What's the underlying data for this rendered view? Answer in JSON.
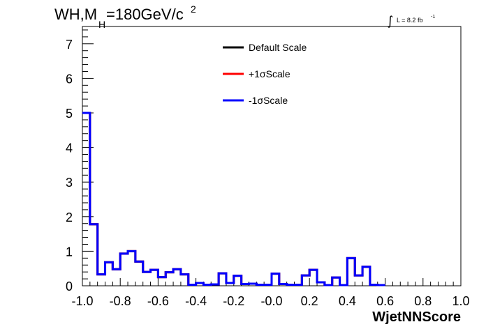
{
  "header": {
    "title_main": "WH,M",
    "title_sub": "H",
    "title_rest": "=180GeV/c",
    "title_sup": "2",
    "lumi_int": "∫",
    "lumi_label": "L = 8.2 fb",
    "lumi_sup": "-1"
  },
  "chart_data": {
    "type": "line",
    "xlabel": "WjetNNScore",
    "ylabel": "",
    "xlim": [
      -1.0,
      1.0
    ],
    "ylim": [
      0,
      7.5
    ],
    "x_ticks": [
      "-1.0",
      "-0.8",
      "-0.6",
      "-0.4",
      "-0.2",
      "-0.0",
      "0.2",
      "0.4",
      "0.6",
      "0.8",
      "1.0"
    ],
    "y_ticks": [
      "0",
      "1",
      "2",
      "3",
      "4",
      "5",
      "6",
      "7"
    ],
    "bin_edges_start": -1.0,
    "bin_width": 0.04,
    "series": [
      {
        "name": "Default Scale",
        "color": "#000000",
        "values": [
          5.0,
          1.78,
          0.33,
          0.68,
          0.48,
          0.93,
          1.0,
          0.7,
          0.4,
          0.46,
          0.25,
          0.39,
          0.48,
          0.33,
          0.03,
          0.08,
          0.03,
          0.04,
          0.36,
          0.08,
          0.29,
          0.05,
          0.06,
          0.03,
          0.03,
          0.35,
          0.05,
          0.03,
          0.03,
          0.3,
          0.46,
          0.1,
          0.02,
          0.24,
          0.02,
          0.8,
          0.3,
          0.55,
          0.03,
          0.02
        ]
      },
      {
        "name": "+1σScale",
        "color": "#ff0000",
        "values": [
          5.0,
          1.78,
          0.33,
          0.68,
          0.48,
          0.93,
          1.0,
          0.7,
          0.4,
          0.46,
          0.25,
          0.39,
          0.48,
          0.33,
          0.03,
          0.08,
          0.03,
          0.04,
          0.36,
          0.08,
          0.29,
          0.05,
          0.06,
          0.03,
          0.03,
          0.35,
          0.05,
          0.03,
          0.03,
          0.3,
          0.46,
          0.1,
          0.02,
          0.24,
          0.02,
          0.8,
          0.3,
          0.55,
          0.03,
          0.02
        ]
      },
      {
        "name": "-1σScale",
        "color": "#0000ff",
        "values": [
          5.0,
          1.78,
          0.33,
          0.68,
          0.48,
          0.93,
          1.0,
          0.7,
          0.4,
          0.46,
          0.25,
          0.39,
          0.48,
          0.33,
          0.03,
          0.08,
          0.03,
          0.04,
          0.36,
          0.08,
          0.29,
          0.05,
          0.06,
          0.03,
          0.03,
          0.35,
          0.05,
          0.03,
          0.03,
          0.3,
          0.46,
          0.1,
          0.02,
          0.24,
          0.02,
          0.8,
          0.3,
          0.55,
          0.03,
          0.02
        ]
      }
    ],
    "legend_position": "top-center",
    "grid": false
  }
}
